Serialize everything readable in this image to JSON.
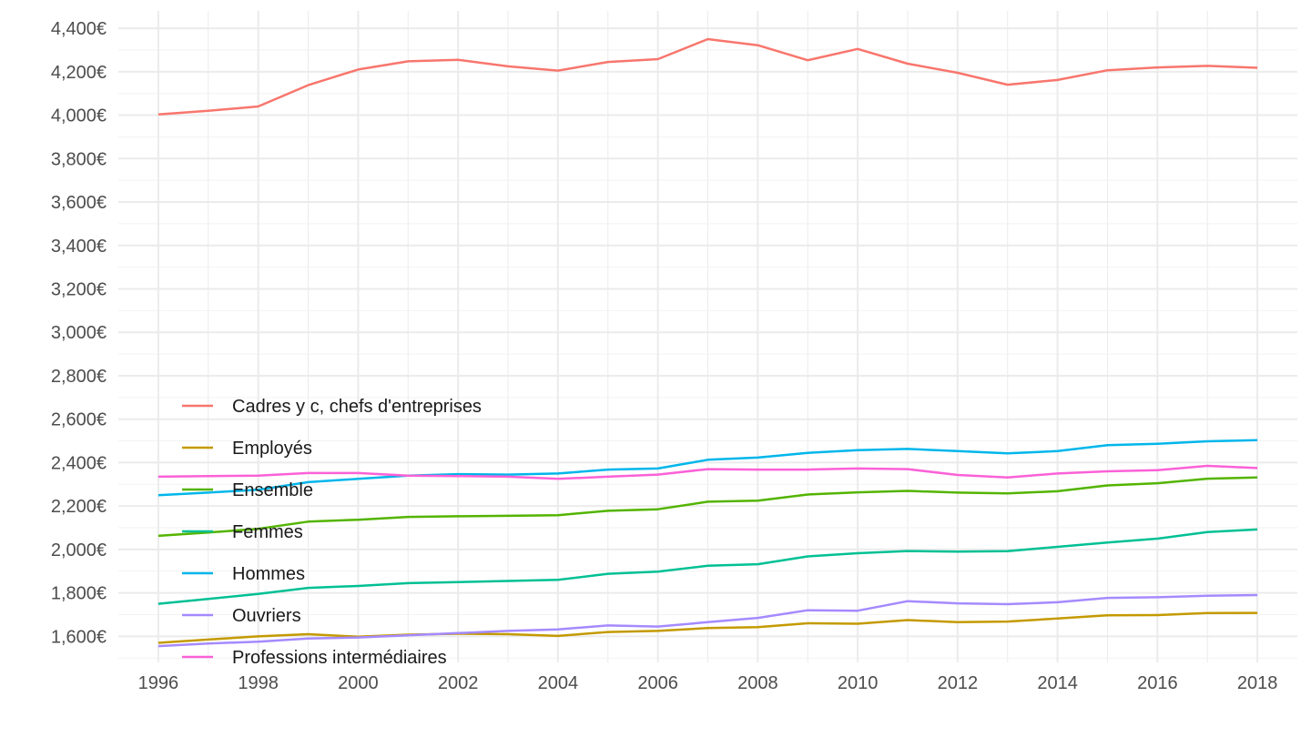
{
  "chart_data": {
    "type": "line",
    "title": "",
    "xlabel": "",
    "ylabel": "",
    "x": [
      1996,
      1997,
      1998,
      1999,
      2000,
      2001,
      2002,
      2003,
      2004,
      2005,
      2006,
      2007,
      2008,
      2009,
      2010,
      2011,
      2012,
      2013,
      2014,
      2015,
      2016,
      2017,
      2018
    ],
    "x_ticks": [
      "1996",
      "1998",
      "2000",
      "2002",
      "2004",
      "2006",
      "2008",
      "2010",
      "2012",
      "2014",
      "2016",
      "2018"
    ],
    "y_ticks": [
      "1,600€",
      "1,800€",
      "2,000€",
      "2,200€",
      "2,400€",
      "2,600€",
      "2,800€",
      "3,000€",
      "3,200€",
      "3,400€",
      "3,600€",
      "3,800€",
      "4,000€",
      "4,200€",
      "4,400€"
    ],
    "xlim": [
      1995.2,
      2018.8
    ],
    "ylim": [
      1480,
      4480
    ],
    "grid": true,
    "legend_position": "inside-bottom-left",
    "series": [
      {
        "name": "Cadres y c, chefs d'entreprises",
        "color": "#F8766D",
        "values": [
          4003,
          4020,
          4040,
          4138,
          4210,
          4248,
          4255,
          4225,
          4205,
          4245,
          4258,
          4350,
          4322,
          4253,
          4305,
          4237,
          4195,
          4140,
          4162,
          4207,
          4220,
          4227,
          4218
        ]
      },
      {
        "name": "Employés",
        "color": "#C49A00",
        "values": [
          1570,
          1585,
          1600,
          1610,
          1598,
          1608,
          1612,
          1610,
          1602,
          1620,
          1625,
          1638,
          1642,
          1660,
          1658,
          1675,
          1665,
          1668,
          1682,
          1697,
          1698,
          1707,
          1708
        ]
      },
      {
        "name": "Ensemble",
        "color": "#53B400",
        "values": [
          2063,
          2078,
          2095,
          2128,
          2137,
          2150,
          2153,
          2155,
          2158,
          2178,
          2185,
          2220,
          2225,
          2253,
          2263,
          2270,
          2262,
          2258,
          2268,
          2295,
          2305,
          2326,
          2332
        ]
      },
      {
        "name": "Femmes",
        "color": "#00C094",
        "values": [
          1750,
          1772,
          1795,
          1823,
          1832,
          1845,
          1850,
          1855,
          1860,
          1888,
          1898,
          1925,
          1932,
          1968,
          1983,
          1993,
          1990,
          1992,
          2012,
          2032,
          2050,
          2080,
          2092
        ]
      },
      {
        "name": "Hommes",
        "color": "#00B6EB",
        "values": [
          2250,
          2262,
          2275,
          2310,
          2325,
          2340,
          2347,
          2345,
          2350,
          2368,
          2373,
          2413,
          2423,
          2445,
          2457,
          2463,
          2453,
          2443,
          2453,
          2480,
          2487,
          2498,
          2503
        ]
      },
      {
        "name": "Ouvriers",
        "color": "#A58AFF",
        "values": [
          1555,
          1567,
          1575,
          1590,
          1595,
          1605,
          1615,
          1625,
          1632,
          1650,
          1645,
          1665,
          1685,
          1720,
          1718,
          1762,
          1752,
          1748,
          1757,
          1777,
          1780,
          1787,
          1790
        ]
      },
      {
        "name": "Professions intermédiaires",
        "color": "#FB61D7",
        "values": [
          2335,
          2338,
          2340,
          2352,
          2352,
          2340,
          2338,
          2335,
          2325,
          2335,
          2345,
          2370,
          2368,
          2368,
          2373,
          2370,
          2343,
          2332,
          2350,
          2360,
          2365,
          2385,
          2375
        ]
      }
    ]
  }
}
